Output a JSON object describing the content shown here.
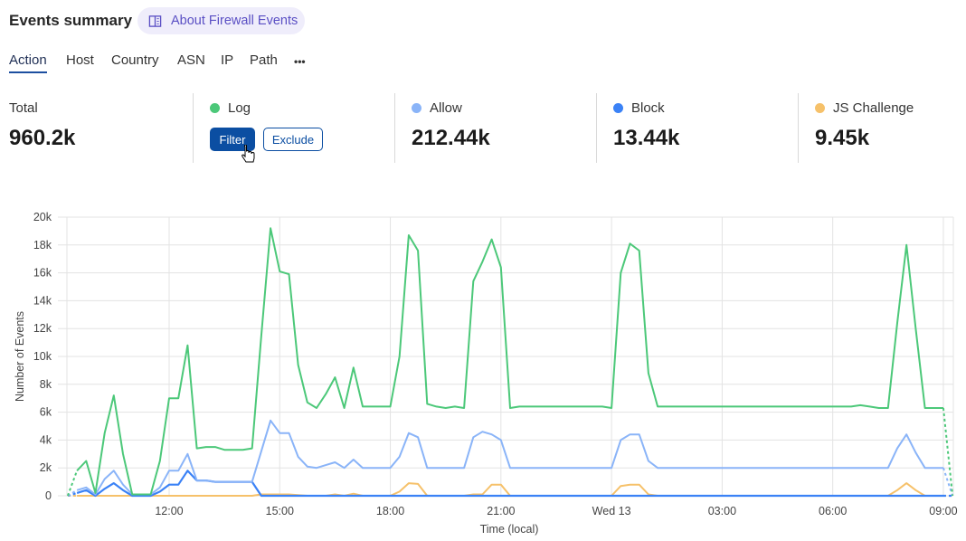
{
  "header": {
    "title": "Events summary",
    "about_label": "About Firewall Events",
    "about_icon": "book-icon"
  },
  "tabs": [
    {
      "label": "Action",
      "active": true
    },
    {
      "label": "Host"
    },
    {
      "label": "Country"
    },
    {
      "label": "ASN"
    },
    {
      "label": "IP"
    },
    {
      "label": "Path"
    },
    {
      "label": "•••"
    }
  ],
  "stats": {
    "total": {
      "label": "Total",
      "value": "960.2k"
    },
    "items": [
      {
        "label": "Log",
        "value": "",
        "color": "#4cc879"
      },
      {
        "label": "Allow",
        "value": "212.44k",
        "color": "#8ab4f8"
      },
      {
        "label": "Block",
        "value": "13.44k",
        "color": "#3b82f6"
      },
      {
        "label": "JS Challenge",
        "value": "9.45k",
        "color": "#f6c16a"
      }
    ],
    "filter_label": "Filter",
    "exclude_label": "Exclude"
  },
  "chart_data": {
    "type": "line",
    "xlabel": "Time (local)",
    "ylabel": "Number of Events",
    "ylim": [
      0,
      20000
    ],
    "yticks": [
      0,
      2000,
      4000,
      6000,
      8000,
      10000,
      12000,
      14000,
      16000,
      18000,
      20000
    ],
    "ytick_labels": [
      "0",
      "2k",
      "4k",
      "6k",
      "8k",
      "10k",
      "12k",
      "14k",
      "16k",
      "18k",
      "20k"
    ],
    "xtick_labels": [
      {
        "at": "12:00",
        "label": "12:00"
      },
      {
        "at": "15:00",
        "label": "15:00"
      },
      {
        "at": "18:00",
        "label": "18:00"
      },
      {
        "at": "21:00",
        "label": "21:00"
      },
      {
        "at": "00:00",
        "label": "Wed 13"
      },
      {
        "at": "03:00",
        "label": "03:00"
      },
      {
        "at": "06:00",
        "label": "06:00"
      },
      {
        "at": "09:00",
        "label": "09:00"
      }
    ],
    "grid": true,
    "x": [
      "09:15",
      "09:30",
      "09:45",
      "10:00",
      "10:15",
      "10:30",
      "10:45",
      "11:00",
      "11:15",
      "11:30",
      "11:45",
      "12:00",
      "12:15",
      "12:30",
      "12:45",
      "13:00",
      "13:15",
      "13:30",
      "13:45",
      "14:00",
      "14:15",
      "14:30",
      "14:45",
      "15:00",
      "15:15",
      "15:30",
      "15:45",
      "16:00",
      "16:15",
      "16:30",
      "16:45",
      "17:00",
      "17:15",
      "17:30",
      "17:45",
      "18:00",
      "18:15",
      "18:30",
      "18:45",
      "19:00",
      "19:15",
      "19:30",
      "19:45",
      "20:00",
      "20:15",
      "20:30",
      "20:45",
      "21:00",
      "21:15",
      "21:30",
      "21:45",
      "22:00",
      "22:15",
      "22:30",
      "22:45",
      "23:00",
      "23:15",
      "23:30",
      "23:45",
      "00:00",
      "00:15",
      "00:30",
      "00:45",
      "01:00",
      "01:15",
      "01:30",
      "01:45",
      "02:00",
      "02:15",
      "02:30",
      "02:45",
      "03:00",
      "03:15",
      "03:30",
      "03:45",
      "04:00",
      "04:15",
      "04:30",
      "04:45",
      "05:00",
      "05:15",
      "05:30",
      "05:45",
      "06:00",
      "06:15",
      "06:30",
      "06:45",
      "07:00",
      "07:15",
      "07:30",
      "07:45",
      "08:00",
      "08:15",
      "08:30",
      "08:45",
      "09:00",
      "09:15"
    ],
    "series": [
      {
        "name": "Log",
        "color": "#4cc879",
        "values": [
          0,
          1800,
          2500,
          200,
          4500,
          7200,
          3000,
          100,
          100,
          100,
          2500,
          7000,
          7000,
          10800,
          3400,
          3500,
          3500,
          3300,
          3300,
          3300,
          3400,
          11500,
          19200,
          16100,
          15900,
          9400,
          6700,
          6300,
          7300,
          8500,
          6300,
          9200,
          6400,
          6400,
          6400,
          6400,
          10000,
          18700,
          17600,
          6600,
          6400,
          6300,
          6400,
          6300,
          15400,
          16800,
          18400,
          16400,
          6300,
          6400,
          6400,
          6400,
          6400,
          6400,
          6400,
          6400,
          6400,
          6400,
          6400,
          6300,
          16000,
          18100,
          17600,
          8800,
          6400,
          6400,
          6400,
          6400,
          6400,
          6400,
          6400,
          6400,
          6400,
          6400,
          6400,
          6400,
          6400,
          6400,
          6400,
          6400,
          6400,
          6400,
          6400,
          6400,
          6400,
          6400,
          6500,
          6400,
          6300,
          6300,
          12400,
          18000,
          12000,
          6300,
          6300,
          6300,
          0
        ]
      },
      {
        "name": "Allow",
        "color": "#8ab4f8",
        "values": [
          0,
          400,
          600,
          100,
          1200,
          1800,
          800,
          100,
          100,
          100,
          600,
          1800,
          1800,
          3000,
          1100,
          1100,
          1000,
          1000,
          1000,
          1000,
          1000,
          3200,
          5400,
          4500,
          4500,
          2800,
          2100,
          2000,
          2200,
          2400,
          2000,
          2600,
          2000,
          2000,
          2000,
          2000,
          2800,
          4500,
          4200,
          2000,
          2000,
          2000,
          2000,
          2000,
          4200,
          4600,
          4400,
          4000,
          2000,
          2000,
          2000,
          2000,
          2000,
          2000,
          2000,
          2000,
          2000,
          2000,
          2000,
          2000,
          4000,
          4400,
          4400,
          2500,
          2000,
          2000,
          2000,
          2000,
          2000,
          2000,
          2000,
          2000,
          2000,
          2000,
          2000,
          2000,
          2000,
          2000,
          2000,
          2000,
          2000,
          2000,
          2000,
          2000,
          2000,
          2000,
          2000,
          2000,
          2000,
          2000,
          3400,
          4400,
          3100,
          2000,
          2000,
          2000,
          0
        ]
      },
      {
        "name": "Block",
        "color": "#3b82f6",
        "values": [
          0,
          200,
          400,
          0,
          500,
          900,
          400,
          0,
          0,
          0,
          300,
          800,
          800,
          1800,
          1100,
          1100,
          1000,
          1000,
          1000,
          1000,
          1000,
          0,
          0,
          0,
          0,
          0,
          0,
          0,
          0,
          0,
          0,
          0,
          0,
          0,
          0,
          0,
          0,
          0,
          0,
          0,
          0,
          0,
          0,
          0,
          0,
          0,
          0,
          0,
          0,
          0,
          0,
          0,
          0,
          0,
          0,
          0,
          0,
          0,
          0,
          0,
          0,
          0,
          0,
          0,
          0,
          0,
          0,
          0,
          0,
          0,
          0,
          0,
          0,
          0,
          0,
          0,
          0,
          0,
          0,
          0,
          0,
          0,
          0,
          0,
          0,
          0,
          0,
          0,
          0,
          0,
          0,
          0,
          0,
          0,
          0,
          0,
          0
        ]
      },
      {
        "name": "JS Challenge",
        "color": "#f6c16a",
        "values": [
          0,
          0,
          0,
          0,
          0,
          0,
          0,
          0,
          0,
          0,
          0,
          0,
          0,
          0,
          0,
          0,
          0,
          0,
          0,
          0,
          0,
          100,
          100,
          100,
          100,
          50,
          0,
          0,
          0,
          100,
          0,
          150,
          0,
          0,
          0,
          0,
          300,
          900,
          850,
          0,
          0,
          0,
          0,
          0,
          100,
          100,
          800,
          800,
          0,
          0,
          0,
          0,
          0,
          0,
          0,
          0,
          0,
          0,
          0,
          0,
          700,
          800,
          800,
          100,
          0,
          0,
          0,
          0,
          0,
          0,
          0,
          0,
          0,
          0,
          0,
          0,
          0,
          0,
          0,
          0,
          0,
          0,
          0,
          0,
          0,
          0,
          0,
          0,
          0,
          0,
          400,
          900,
          400,
          0,
          0,
          0,
          0
        ]
      }
    ]
  }
}
